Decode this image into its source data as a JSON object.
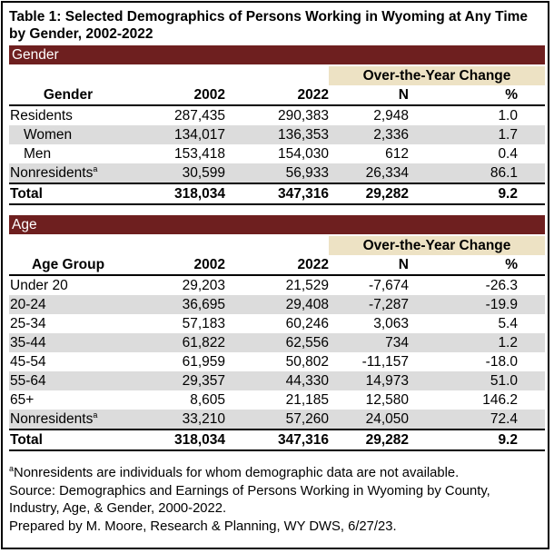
{
  "title_line1": "Table 1: Selected Demographics of Persons Working in Wyoming at Any Time",
  "title_line2": "by Gender, 2002-2022",
  "gender": {
    "section": "Gender",
    "change_header": "Over-the-Year Change",
    "columns": [
      "Gender",
      "2002",
      "2022",
      "N",
      "%"
    ],
    "rows": [
      {
        "label": "Residents",
        "v2002": "287,435",
        "v2022": "290,383",
        "n": "2,948",
        "pct": "1.0",
        "indent": false,
        "sup": ""
      },
      {
        "label": "Women",
        "v2002": "134,017",
        "v2022": "136,353",
        "n": "2,336",
        "pct": "1.7",
        "indent": true,
        "sup": ""
      },
      {
        "label": "Men",
        "v2002": "153,418",
        "v2022": "154,030",
        "n": "612",
        "pct": "0.4",
        "indent": true,
        "sup": ""
      },
      {
        "label": "Nonresidents",
        "v2002": "30,599",
        "v2022": "56,933",
        "n": "26,334",
        "pct": "86.1",
        "indent": false,
        "sup": "a"
      }
    ],
    "total": {
      "label": "Total",
      "v2002": "318,034",
      "v2022": "347,316",
      "n": "29,282",
      "pct": "9.2"
    }
  },
  "age": {
    "section": "Age",
    "change_header": "Over-the-Year Change",
    "columns": [
      "Age Group",
      "2002",
      "2022",
      "N",
      "%"
    ],
    "rows": [
      {
        "label": "Under 20",
        "v2002": "29,203",
        "v2022": "21,529",
        "n": "-7,674",
        "pct": "-26.3",
        "sup": ""
      },
      {
        "label": "20-24",
        "v2002": "36,695",
        "v2022": "29,408",
        "n": "-7,287",
        "pct": "-19.9",
        "sup": ""
      },
      {
        "label": "25-34",
        "v2002": "57,183",
        "v2022": "60,246",
        "n": "3,063",
        "pct": "5.4",
        "sup": ""
      },
      {
        "label": "35-44",
        "v2002": "61,822",
        "v2022": "62,556",
        "n": "734",
        "pct": "1.2",
        "sup": ""
      },
      {
        "label": "45-54",
        "v2002": "61,959",
        "v2022": "50,802",
        "n": "-11,157",
        "pct": "-18.0",
        "sup": ""
      },
      {
        "label": "55-64",
        "v2002": "29,357",
        "v2022": "44,330",
        "n": "14,973",
        "pct": "51.0",
        "sup": ""
      },
      {
        "label": "65+",
        "v2002": "8,605",
        "v2022": "21,185",
        "n": "12,580",
        "pct": "146.2",
        "sup": ""
      },
      {
        "label": "Nonresidents",
        "v2002": "33,210",
        "v2022": "57,260",
        "n": "24,050",
        "pct": "72.4",
        "sup": "a"
      }
    ],
    "total": {
      "label": "Total",
      "v2002": "318,034",
      "v2022": "347,316",
      "n": "29,282",
      "pct": "9.2"
    }
  },
  "notes": {
    "footnote_mark": "a",
    "footnote": "Nonresidents are individuals for whom demographic data are not available.",
    "source_line1": "Source: Demographics and Earnings of Persons Working in Wyoming by County,",
    "source_line2": "Industry, Age, & Gender, 2000-2022.",
    "prepared": "Prepared by M. Moore, Research & Planning, WY DWS, 6/27/23."
  }
}
